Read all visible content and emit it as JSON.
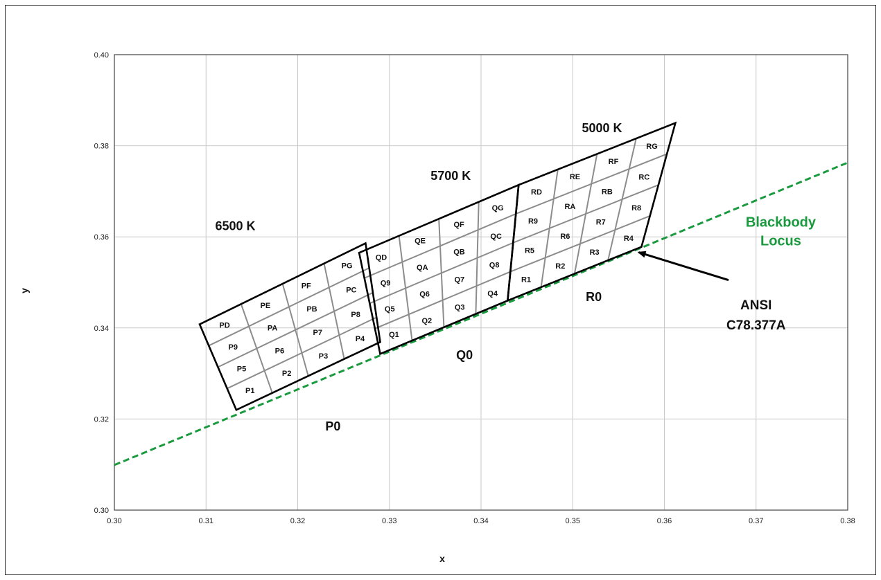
{
  "chart_data": {
    "type": "scatter",
    "xlabel": "x",
    "ylabel": "y",
    "xlim": [
      0.3,
      0.38
    ],
    "ylim": [
      0.3,
      0.4
    ],
    "x_ticks": [
      "0.30",
      "0.31",
      "0.32",
      "0.33",
      "0.34",
      "0.35",
      "0.36",
      "0.37",
      "0.38"
    ],
    "y_ticks": [
      "0.30",
      "0.32",
      "0.34",
      "0.36",
      "0.38",
      "0.40"
    ],
    "grid": true,
    "colors": {
      "locus": "#1a9a3e",
      "outline": "#000000",
      "subgrid": "#8c8c8c",
      "grid": "#c8c8c8"
    },
    "blackbody_locus": {
      "name": "Blackbody Locus",
      "name_lines": [
        "Blackbody",
        "Locus"
      ],
      "style": "dashed",
      "points": [
        [
          0.3,
          0.3099
        ],
        [
          0.38,
          0.3763
        ]
      ]
    },
    "quadrangles": [
      {
        "name": "P0",
        "cct": "6500 K",
        "corners": {
          "tl": [
            0.3093,
            0.3408
          ],
          "tr": [
            0.3274,
            0.3586
          ],
          "br": [
            0.329,
            0.3369
          ],
          "bl": [
            0.3133,
            0.322
          ]
        },
        "bins": [
          [
            "P5",
            "P6",
            "P7",
            "P8"
          ],
          [
            "P9",
            "PA",
            "PB",
            "PC"
          ],
          [
            "PD",
            "PE",
            "PF",
            "PG"
          ]
        ],
        "bins_bottom_row": [
          "P1",
          "P2",
          "P3",
          "P4"
        ]
      },
      {
        "name": "Q0",
        "cct": "5700 K",
        "corners": {
          "tl": [
            0.3267,
            0.3565
          ],
          "tr": [
            0.3441,
            0.3714
          ],
          "br": [
            0.3429,
            0.346
          ],
          "bl": [
            0.329,
            0.3343
          ]
        },
        "bins": [
          [
            "Q5",
            "Q6",
            "Q7",
            "Q8"
          ],
          [
            "Q9",
            "QA",
            "QB",
            "QC"
          ],
          [
            "QD",
            "QE",
            "QF",
            "QG"
          ]
        ],
        "bins_bottom_row": [
          "Q1",
          "Q2",
          "Q3",
          "Q4"
        ]
      },
      {
        "name": "R0",
        "cct": "5000 K",
        "corners": {
          "tl": [
            0.3441,
            0.3714
          ],
          "tr": [
            0.3612,
            0.385
          ],
          "br": [
            0.3575,
            0.3578
          ],
          "bl": [
            0.3429,
            0.346
          ]
        },
        "bins": [
          [
            "R5",
            "R6",
            "R7",
            "R8"
          ],
          [
            "R9",
            "RA",
            "RB",
            "RC"
          ],
          [
            "RD",
            "RE",
            "RF",
            "RG"
          ]
        ],
        "bins_bottom_row": [
          "R1",
          "R2",
          "R3",
          "R4"
        ]
      }
    ],
    "annotation": {
      "lines": [
        "ANSI",
        "C78.377A"
      ],
      "arrow_from": [
        0.367,
        0.3505
      ],
      "arrow_to": [
        0.3572,
        0.3566
      ]
    }
  }
}
